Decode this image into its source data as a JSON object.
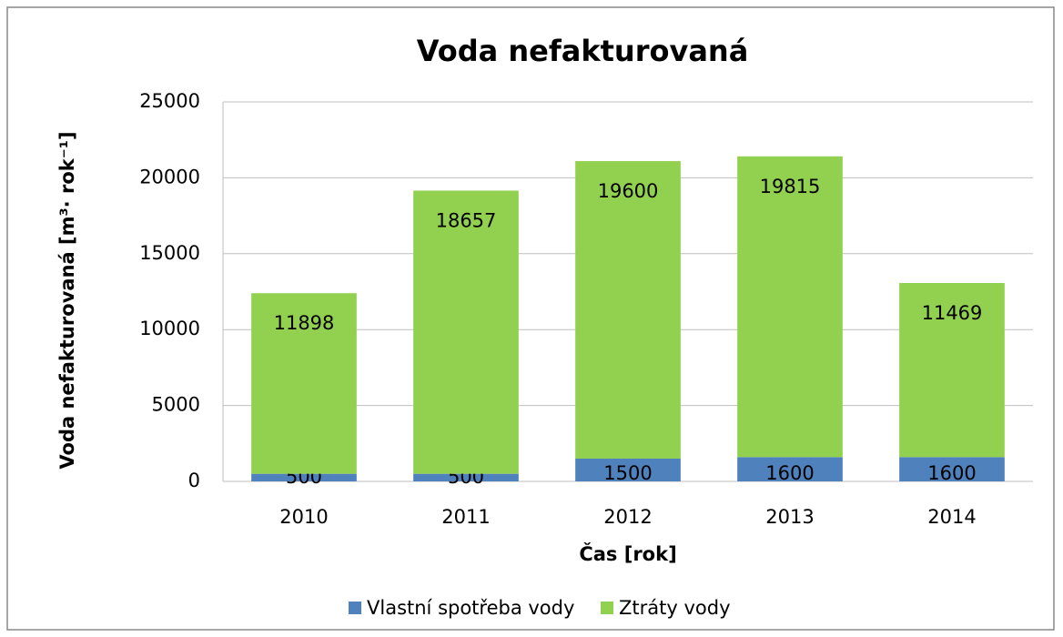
{
  "chart_data": {
    "type": "stacked_bar",
    "title": "Voda nefakturovaná",
    "y_label": "Voda nefakturovaná  [m³· rok⁻¹]",
    "x_label": "Čas [rok]",
    "categories": [
      "2010",
      "2011",
      "2012",
      "2013",
      "2014"
    ],
    "series": [
      {
        "name": "Vlastní spotřeba vody",
        "color": "#4f81bd",
        "values": [
          500,
          500,
          1500,
          1600,
          1600
        ]
      },
      {
        "name": "Ztráty vody",
        "color": "#92d050",
        "values": [
          11898,
          18657,
          19600,
          19815,
          11469
        ]
      }
    ],
    "ylim": [
      0,
      25000
    ],
    "yticks": [
      0,
      5000,
      10000,
      15000,
      20000,
      25000
    ],
    "grid": true,
    "legend": "bottom"
  }
}
